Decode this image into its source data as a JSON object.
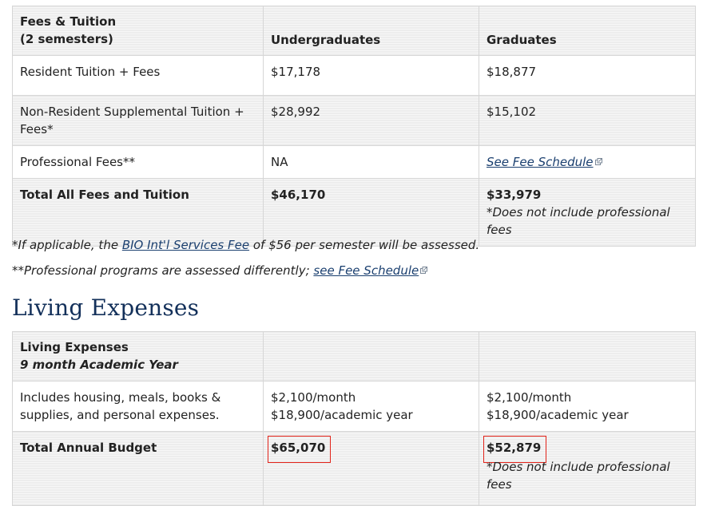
{
  "fees_table": {
    "header": {
      "title_line1": "Fees & Tuition",
      "title_line2": "(2 semesters)",
      "col_undergrad": "Undergraduates",
      "col_grad": "Graduates"
    },
    "rows": [
      {
        "label": "Resident Tuition + Fees",
        "undergrad": "$17,178",
        "grad": "$18,877"
      },
      {
        "label": "Non-Resident Supplemental Tuition + Fees*",
        "undergrad": "$28,992",
        "grad": "$15,102"
      },
      {
        "label": "Professional Fees**",
        "undergrad": "NA",
        "grad_link": "See Fee Schedule"
      }
    ],
    "total": {
      "label": "Total All Fees and Tuition",
      "undergrad": "$46,170",
      "grad": "$33,979",
      "grad_note": "*Does not include professional fees"
    }
  },
  "footnotes": {
    "fn1_prefix": "*If applicable, the ",
    "fn1_link": "BIO Int'l Services Fee",
    "fn1_suffix": " of $56 per semester will be assessed.",
    "fn2_prefix": "**Professional programs are assessed differently; ",
    "fn2_link": "see Fee Schedule"
  },
  "living_section": {
    "heading": "Living Expenses"
  },
  "living_table": {
    "header": {
      "title_line1": "Living Expenses",
      "title_line2": "9 month Academic Year"
    },
    "row": {
      "label": "Includes housing, meals, books & supplies, and personal expenses.",
      "undergrad_line1": "$2,100/month",
      "undergrad_line2": "$18,900/academic year",
      "grad_line1": "$2,100/month",
      "grad_line2": "$18,900/academic year"
    },
    "total": {
      "label": "Total Annual Budget",
      "undergrad": "$65,070",
      "grad": "$52,879",
      "grad_note": "*Does not include professional fees"
    }
  },
  "icons": {
    "external_link": "external-link-icon"
  },
  "colors": {
    "heading": "#13305a",
    "link": "#1a3f6f",
    "highlight_box": "#e2231a",
    "header_bg": "#ededed",
    "border": "#d6d6d6"
  }
}
